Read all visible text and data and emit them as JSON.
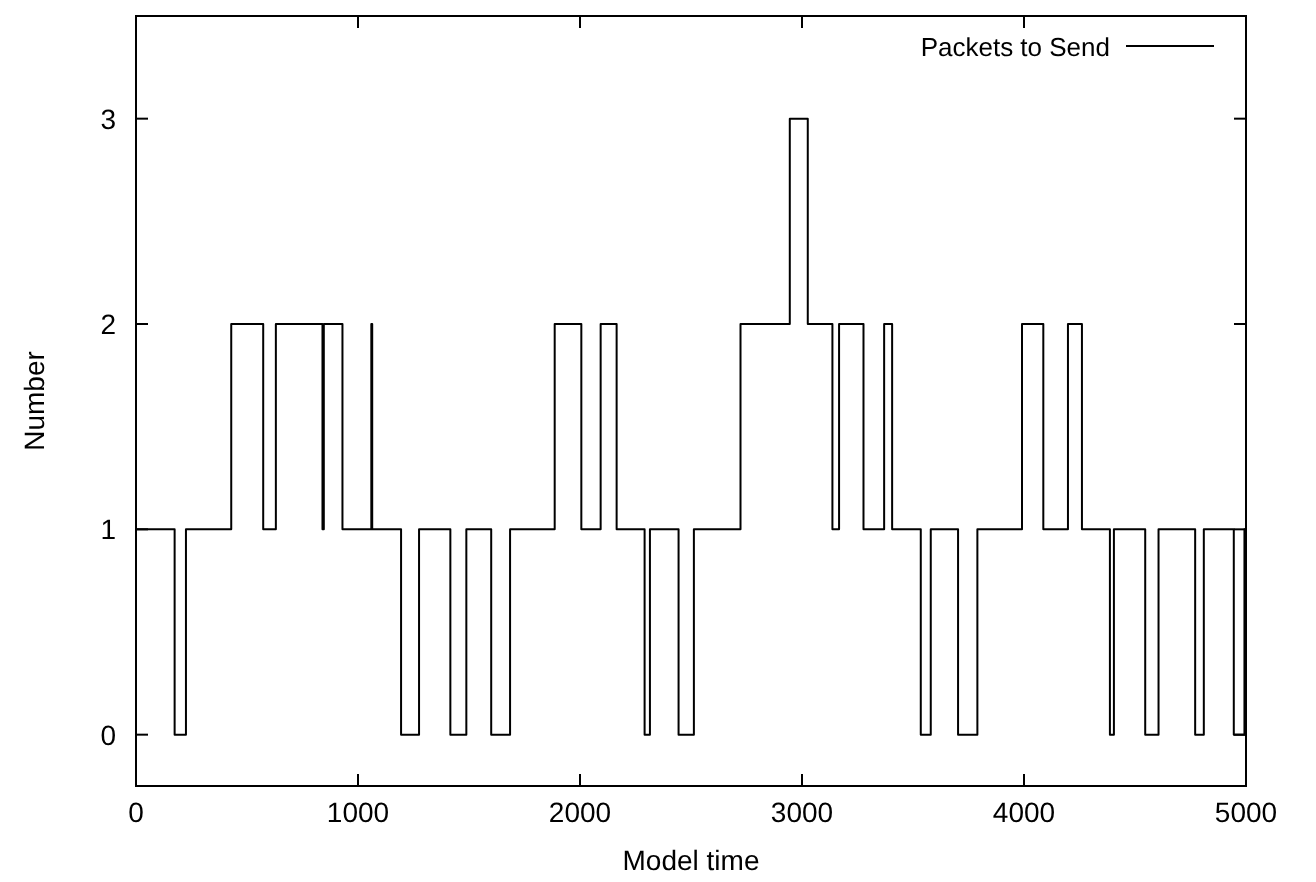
{
  "chart_data": {
    "type": "step",
    "xlabel": "Model time",
    "ylabel": "Number",
    "xlim": [
      0,
      5000
    ],
    "ylim": [
      -0.25,
      3.5
    ],
    "xticks": [
      0,
      1000,
      2000,
      3000,
      4000,
      5000
    ],
    "yticks": [
      0,
      1,
      2,
      3
    ],
    "grid": false,
    "legend": "top right",
    "line_style": "solid",
    "series": [
      {
        "name": "Packets to Send",
        "color": "#000000",
        "x": [
          0,
          174,
          225,
          429,
          573,
          630,
          840,
          846,
          930,
          1060,
          1064,
          1194,
          1275,
          1416,
          1488,
          1600,
          1685,
          1886,
          2006,
          2093,
          2165,
          2291,
          2315,
          2444,
          2513,
          2723,
          2945,
          3026,
          3137,
          3167,
          3277,
          3370,
          3406,
          3535,
          3580,
          3703,
          3790,
          3991,
          4087,
          4198,
          4261,
          4387,
          4405,
          4546,
          4606,
          4771,
          4810,
          4945,
          4993,
          5000
        ],
        "values": [
          1,
          0,
          1,
          2,
          1,
          2,
          1,
          2,
          1,
          2,
          1,
          0,
          1,
          0,
          1,
          0,
          1,
          2,
          1,
          2,
          1,
          0,
          1,
          0,
          1,
          2,
          3,
          2,
          1,
          2,
          1,
          2,
          1,
          0,
          1,
          0,
          1,
          2,
          1,
          2,
          1,
          0,
          1,
          0,
          1,
          0,
          1,
          0,
          1,
          1
        ]
      }
    ]
  }
}
